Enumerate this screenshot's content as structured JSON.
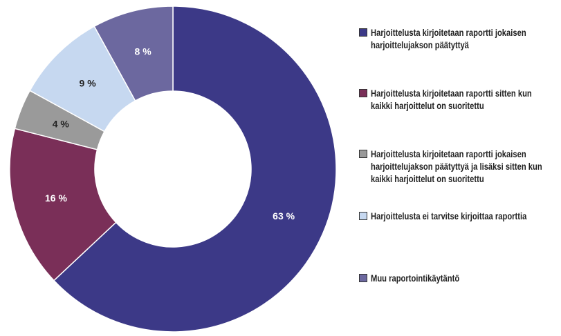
{
  "chart_data": {
    "type": "donut",
    "series": [
      {
        "name": "Harjoittelusta kirjoitetaan raportti jokaisen harjoittelujakson päätyttyä",
        "color": "#3c3987",
        "values": [
          63
        ],
        "value_labels": [
          "63 %"
        ]
      },
      {
        "name": "Harjoittelusta kirjoitetaan raportti sitten kun kaikki harjoittelut on suoritettu",
        "color": "#7a2f58",
        "values": [
          16
        ],
        "value_labels": [
          "16 %"
        ]
      },
      {
        "name": "Harjoittelusta kirjoitetaan raportti jokaisen harjoittelujakson päätyttyä ja lisäksi sitten kun kaikki harjoittelut on suoritettu",
        "color": "#9a9a9a",
        "values": [
          4
        ],
        "value_labels": [
          "4 %"
        ]
      },
      {
        "name": "Harjoittelusta ei tarvitse kirjoittaa raporttia",
        "color": "#c6d8f0",
        "values": [
          9
        ],
        "value_labels": [
          "9 %"
        ]
      },
      {
        "name": "Muu raportointikäytäntö",
        "color": "#6c689f",
        "values": [
          8
        ],
        "value_labels": [
          "8 %"
        ]
      }
    ],
    "legend": "right"
  }
}
